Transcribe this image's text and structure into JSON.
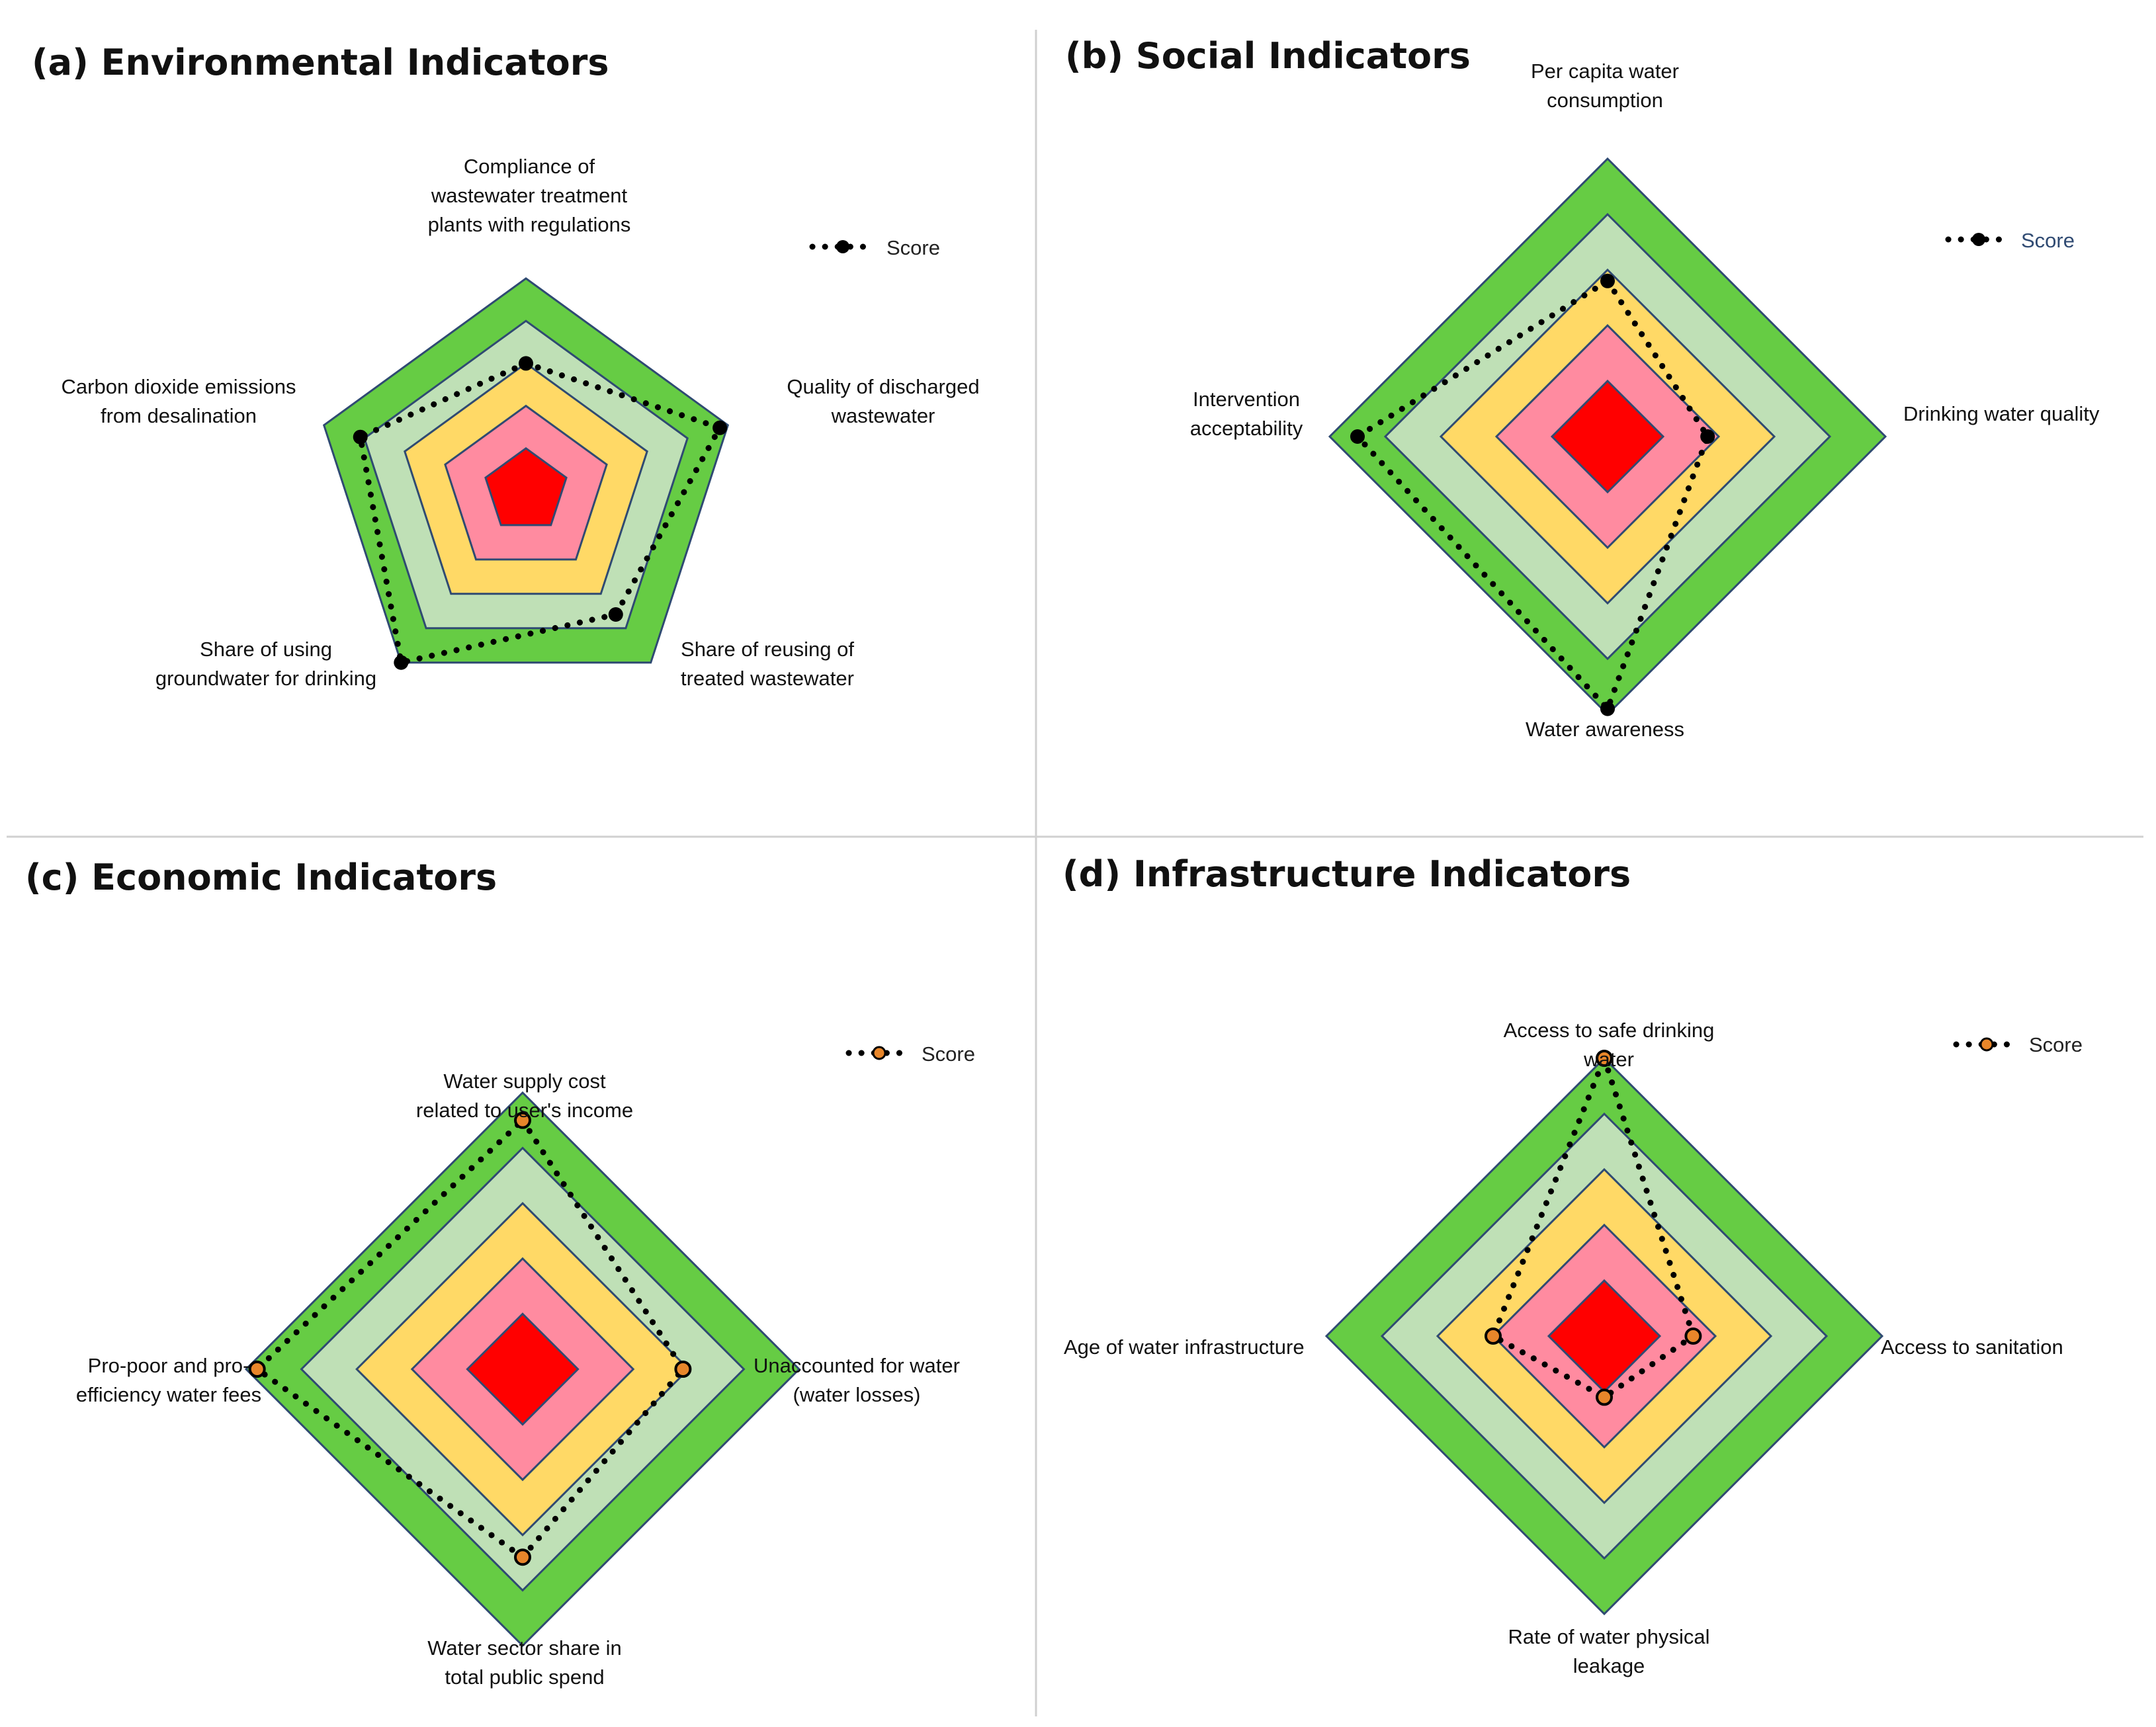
{
  "colors": {
    "level_1": "#66CC44",
    "level_2": "#BFE0B6",
    "level_3": "#FFD966",
    "level_4": "#FF8BA0",
    "level_5": "#FF0000",
    "outline": "#2F4A72",
    "score_line": "#000000",
    "score_marker_alt": "#E8862A",
    "divider": "#D0D0D0"
  },
  "chart_data": [
    {
      "id": "a",
      "type": "radar",
      "title": "(a) Environmental Indicators",
      "legend": {
        "label": "Score",
        "position": "top-right"
      },
      "axes": [
        "Compliance of wastewater treatment plants with regulations",
        "Quality of discharged wastewater",
        "Share of reusing of treated wastewater",
        "Share of using groundwater for drinking",
        "Carbon dioxide emissions from desalination"
      ],
      "axis_label_lines": [
        [
          "Compliance of",
          "wastewater treatment",
          "plants with regulations"
        ],
        [
          "Quality of discharged",
          "wastewater"
        ],
        [
          "Share of reusing of",
          "treated wastewater"
        ],
        [
          "Share of using",
          "groundwater for drinking"
        ],
        [
          "Carbon dioxide emissions",
          "from desalination"
        ]
      ],
      "levels": [
        5,
        4,
        3,
        2,
        1
      ],
      "range": [
        0,
        5
      ],
      "series": [
        {
          "name": "Score",
          "marker": "black",
          "values": [
            3.0,
            4.8,
            3.6,
            5.0,
            4.1
          ]
        }
      ]
    },
    {
      "id": "b",
      "type": "radar",
      "title": "(b) Social Indicators",
      "legend": {
        "label": "Score",
        "position": "top-right"
      },
      "axes": [
        "Per capita water consumption",
        "Drinking water quality",
        "Water awareness",
        "Intervention acceptability"
      ],
      "axis_label_lines": [
        [
          "Per capita water",
          "consumption"
        ],
        [
          "Drinking water quality"
        ],
        [
          "Water awareness"
        ],
        [
          "Intervention",
          "acceptability"
        ]
      ],
      "levels": [
        5,
        4,
        3,
        2,
        1
      ],
      "range": [
        0,
        5
      ],
      "series": [
        {
          "name": "Score",
          "marker": "black",
          "values": [
            2.8,
            1.8,
            4.9,
            4.5
          ]
        }
      ]
    },
    {
      "id": "c",
      "type": "radar",
      "title": "(c) Economic Indicators",
      "legend": {
        "label": "Score",
        "position": "top-right"
      },
      "axes": [
        "Water supply cost related to user's income",
        "Unaccounted for water (water losses)",
        "Water sector share in total public spend",
        "Pro-poor and pro-efficiency water fees"
      ],
      "axis_label_lines": [
        [
          "Water supply cost",
          "related to user's income"
        ],
        [
          "Unaccounted for water",
          "(water losses)"
        ],
        [
          "Water sector share in",
          "total public spend"
        ],
        [
          "Pro-poor and pro-",
          "efficiency water fees"
        ]
      ],
      "levels": [
        5,
        4,
        3,
        2,
        1
      ],
      "range": [
        0,
        5
      ],
      "series": [
        {
          "name": "Score",
          "marker": "orange",
          "values": [
            4.5,
            2.9,
            3.4,
            4.8
          ]
        }
      ]
    },
    {
      "id": "d",
      "type": "radar",
      "title": "(d) Infrastructure Indicators",
      "legend": {
        "label": "Score",
        "position": "top-right"
      },
      "axes": [
        "Access to safe drinking water",
        "Access to sanitation",
        "Rate of water physical leakage",
        "Age of water infrastructure"
      ],
      "axis_label_lines": [
        [
          "Access to safe drinking",
          "water"
        ],
        [
          "Access to sanitation"
        ],
        [
          "Rate of water physical",
          "leakage"
        ],
        [
          "Age of water infrastructure"
        ]
      ],
      "levels": [
        5,
        4,
        3,
        2,
        1
      ],
      "range": [
        0,
        5
      ],
      "series": [
        {
          "name": "Score",
          "marker": "orange",
          "values": [
            5.0,
            1.6,
            1.1,
            2.0
          ]
        }
      ]
    }
  ]
}
